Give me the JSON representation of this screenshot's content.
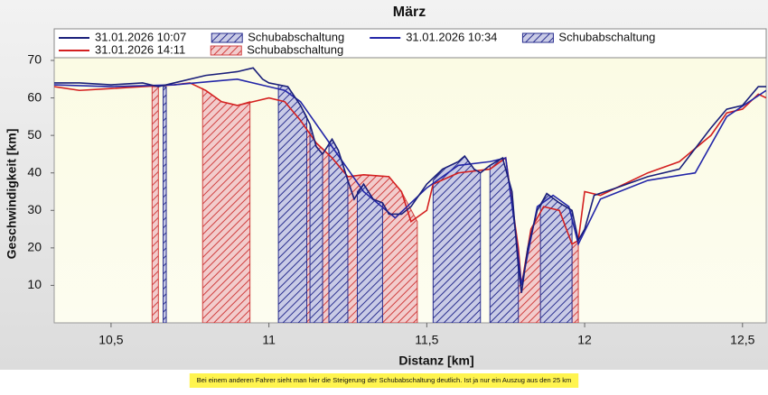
{
  "chart_data": {
    "type": "line",
    "title": "März",
    "x_label": "Distanz [km]",
    "y_label": "Geschwindigkeit [km]",
    "xlim": [
      10.32,
      12.575
    ],
    "ylim": [
      0,
      70
    ],
    "xticks": [
      {
        "value": 10.5,
        "label": "10,5"
      },
      11,
      {
        "value": 11.5,
        "label": "11,5"
      },
      12,
      {
        "value": 12.5,
        "label": "12,5"
      }
    ],
    "yticks": [
      10,
      20,
      30,
      40,
      50,
      60,
      70
    ],
    "grid": false,
    "legend": "top",
    "series": [
      {
        "name": "31.01.2026 10:07",
        "color": "#1a1f7a",
        "x": [
          10.32,
          10.4,
          10.5,
          10.6,
          10.65,
          10.7,
          10.8,
          10.9,
          10.95,
          10.98,
          11.0,
          11.03,
          11.06,
          11.1,
          11.13,
          11.15,
          11.17,
          11.2,
          11.22,
          11.25,
          11.27,
          11.3,
          11.33,
          11.36,
          11.38,
          11.42,
          11.45,
          11.5,
          11.55,
          11.6,
          11.62,
          11.65,
          11.67,
          11.7,
          11.74,
          11.77,
          11.79,
          11.8,
          11.82,
          11.85,
          11.88,
          11.92,
          11.96,
          11.98,
          12.0,
          12.03,
          12.1,
          12.2,
          12.3,
          12.4,
          12.45,
          12.5,
          12.55,
          12.575
        ],
        "values": [
          64,
          64,
          63.5,
          64,
          63,
          64,
          66,
          67,
          68,
          65,
          64,
          63.5,
          63,
          58,
          53,
          47,
          45,
          49,
          46,
          38,
          33,
          37,
          33,
          32,
          29,
          29,
          31,
          37,
          41,
          43,
          44.5,
          41,
          40,
          42,
          44,
          35,
          15,
          8,
          20,
          30,
          34.5,
          32,
          30,
          22,
          25,
          34,
          36,
          39,
          41,
          52,
          57,
          58,
          63,
          63
        ]
      },
      {
        "name": "Schubabschaltung",
        "color": "#2a2f8f",
        "fill": "#c9cbe6",
        "pattern": "hatch",
        "x": [
          10.665,
          10.675,
          10.7,
          11.03,
          11.06,
          11.1,
          11.12,
          11.125,
          11.13,
          11.15,
          11.17
        ],
        "values": [
          63,
          63,
          null,
          63.5,
          63,
          58,
          55,
          null,
          53,
          47,
          45
        ]
      },
      {
        "name": "31.01.2026 10:34",
        "color": "#2326a8",
        "x": [
          10.32,
          10.5,
          10.7,
          10.9,
          11.0,
          11.05,
          11.1,
          11.2,
          11.3,
          11.4,
          11.5,
          11.6,
          11.7,
          11.75,
          11.78,
          11.8,
          11.85,
          11.9,
          11.95,
          11.98,
          12.05,
          12.2,
          12.35,
          12.45,
          12.575
        ],
        "values": [
          63.5,
          63,
          63.5,
          65,
          63,
          62,
          59,
          47,
          35,
          28,
          36,
          42,
          43,
          44,
          25,
          10,
          31,
          34,
          31,
          21,
          33,
          38,
          40,
          55,
          62
        ]
      },
      {
        "name": "Schubabschaltung",
        "color": "#2a2f8f",
        "fill": "#c9cbe6",
        "pattern": "hatch",
        "x": [
          11.19,
          11.2,
          11.22,
          11.25,
          11.26,
          11.28,
          11.3,
          11.33,
          11.36,
          11.37,
          11.52,
          11.55,
          11.6,
          11.62,
          11.65,
          11.67,
          11.68,
          11.7,
          11.74,
          11.77,
          11.79,
          11.82,
          11.86,
          11.88,
          11.92,
          11.96
        ],
        "values": [
          48,
          49,
          46,
          38,
          null,
          35,
          37,
          33,
          32,
          null,
          38,
          41,
          43,
          44.5,
          41,
          40,
          null,
          42,
          44,
          35,
          15,
          null,
          31,
          34.5,
          32,
          30
        ]
      },
      {
        "name": "31.01.2026 14:11",
        "color": "#d42020",
        "x": [
          10.32,
          10.4,
          10.5,
          10.6,
          10.7,
          10.75,
          10.8,
          10.85,
          10.9,
          10.95,
          11.0,
          11.05,
          11.1,
          11.15,
          11.2,
          11.25,
          11.3,
          11.38,
          11.42,
          11.45,
          11.5,
          11.52,
          11.6,
          11.7,
          11.75,
          11.79,
          11.8,
          11.83,
          11.87,
          11.92,
          11.96,
          11.98,
          12.0,
          12.05,
          12.1,
          12.2,
          12.3,
          12.4,
          12.45,
          12.5,
          12.55,
          12.575
        ],
        "values": [
          63,
          62,
          62.5,
          63,
          63.5,
          64,
          62,
          59,
          58,
          59,
          60,
          59,
          54,
          48,
          44,
          39,
          39.5,
          39,
          35,
          27,
          30,
          37,
          40,
          41,
          44,
          20,
          10,
          25,
          31,
          30,
          21,
          22,
          35,
          34,
          36,
          40,
          43,
          50,
          56,
          57,
          61,
          60
        ]
      },
      {
        "name": "Schubabschaltung",
        "color": "#d04040",
        "fill": "#f2cccc",
        "pattern": "hatch",
        "x": [
          10.63,
          10.65,
          10.66,
          10.79,
          10.85,
          10.9,
          10.94,
          10.97,
          11.1,
          11.15,
          11.2,
          11.25,
          11.3,
          11.38,
          11.42,
          11.47,
          11.5,
          11.78,
          11.8,
          11.83,
          11.87,
          11.9,
          11.96,
          11.98
        ],
        "values": [
          63,
          63,
          null,
          62.5,
          59,
          58,
          59,
          null,
          54,
          48,
          44,
          39,
          39.5,
          39,
          35,
          27,
          null,
          22,
          10,
          25,
          31,
          null,
          21,
          22
        ]
      }
    ]
  },
  "caption": "Bei einem anderen Fahrer sieht man hier die Steigerung der Schubabschaltung deutlich. Ist ja nur ein Auszug aus den 25 km"
}
